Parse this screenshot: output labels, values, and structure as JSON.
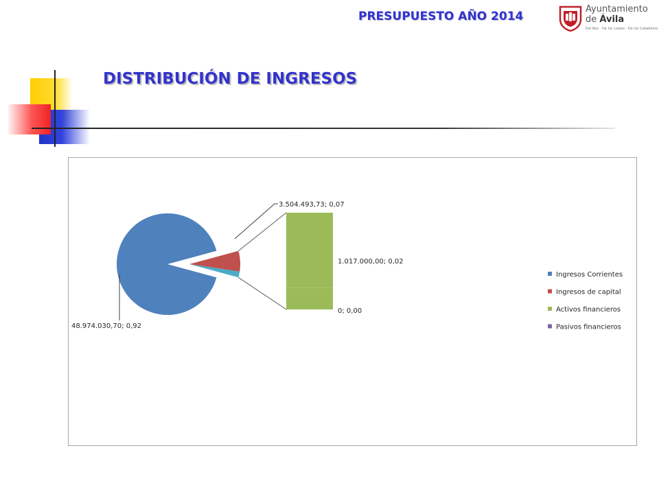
{
  "header": {
    "title": "PRESUPUESTO AÑO 2014",
    "logo": {
      "line1": "Ayuntamiento",
      "line2_prefix": "de ",
      "line2_bold": "Ávila",
      "line3": "Del Rey · De los Leales · De los Caballeros"
    }
  },
  "main": {
    "title": "DISTRIBUCIÓN DE INGRESOS"
  },
  "colors": {
    "accent": "#3333cc",
    "ingresos_corrientes": "#4f81bd",
    "ingresos_capital": "#c0504d",
    "activos_financieros": "#9bbb59",
    "pasivos_financieros": "#8064a2",
    "secondary_slice": "#4bacc6"
  },
  "chart_data": {
    "type": "pie",
    "subtype": "pie-of-bar",
    "title": "",
    "legend_position": "right",
    "series": [
      {
        "name": "Ingresos Corrientes",
        "value": 48974030.7,
        "share": 0.92,
        "label": "48.974.030,70; 0,92"
      },
      {
        "name": "Ingresos de capital",
        "value": 3504493.73,
        "share": 0.07,
        "label": "3.504.493,73; 0,07"
      },
      {
        "name": "Activos financieros",
        "value": 1017000.0,
        "share": 0.02,
        "label": "1.017.000,00; 0,02"
      },
      {
        "name": "Pasivos financieros",
        "value": 0,
        "share": 0.0,
        "label": "0; 0,00"
      }
    ]
  }
}
